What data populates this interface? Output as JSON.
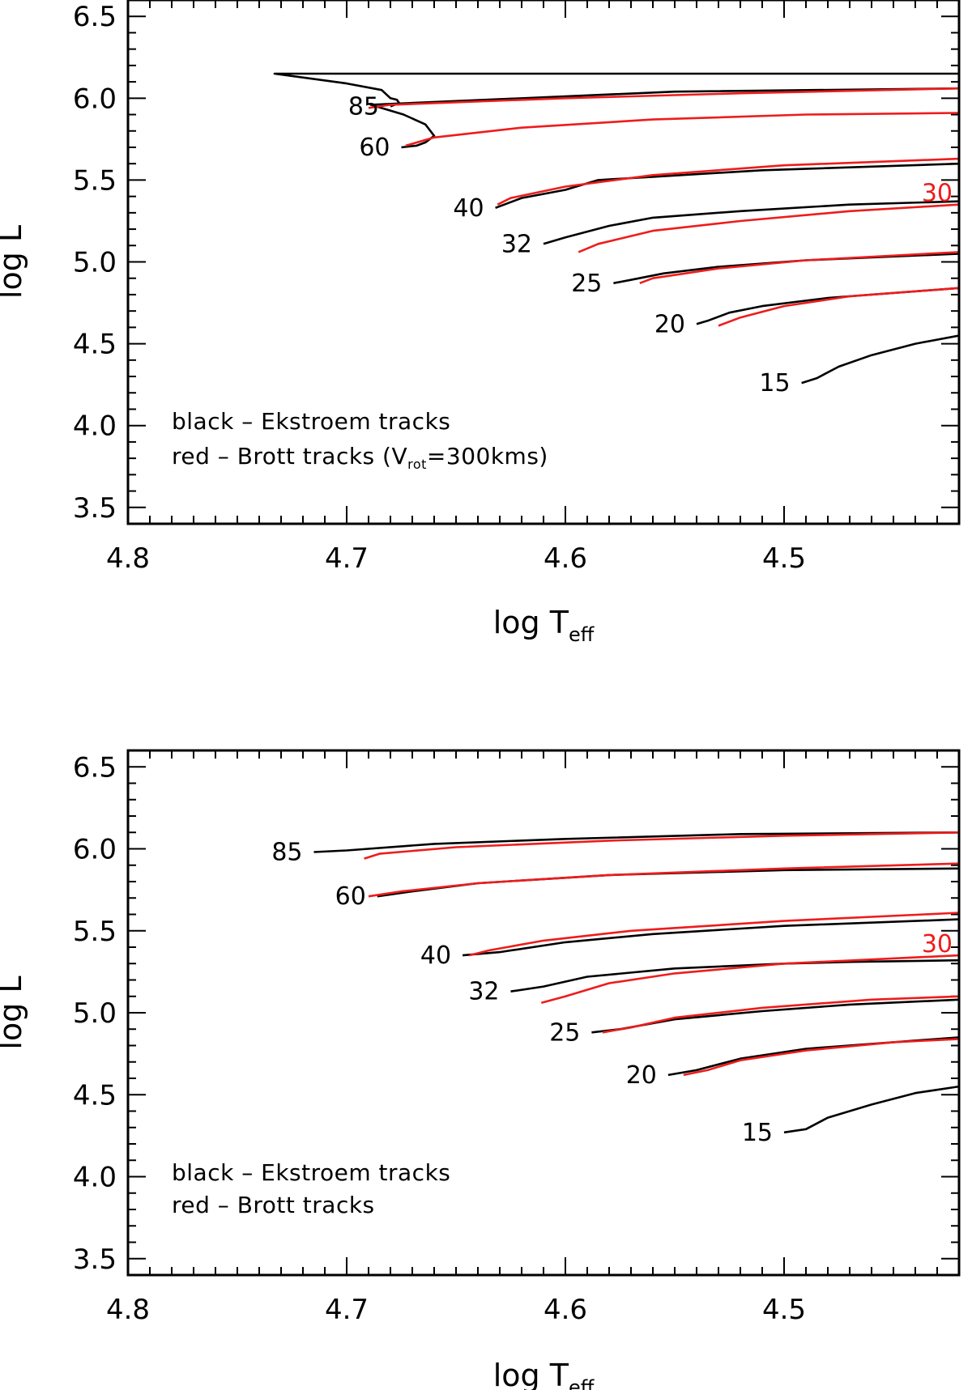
{
  "chart_data": [
    {
      "type": "line",
      "title": "",
      "xlabel": "log T",
      "xlabel_sub": "eff",
      "ylabel": "log L",
      "xlim": [
        4.8,
        4.42
      ],
      "ylim": [
        3.4,
        6.6
      ],
      "xticks": [
        4.8,
        4.7,
        4.6,
        4.5
      ],
      "xtick_labels": [
        "4.8",
        "4.7",
        "4.6",
        "4.5"
      ],
      "yticks": [
        3.5,
        4.0,
        4.5,
        5.0,
        5.5,
        6.0,
        6.5
      ],
      "ytick_labels": [
        "3.5",
        "4.0",
        "4.5",
        "5.0",
        "5.5",
        "6.0",
        "6.5"
      ],
      "colors": {
        "black": "#000000",
        "red": "#ee1c1c"
      },
      "legend": {
        "line1": "black – Ekstroem tracks",
        "line2_prefix": "red – Brott tracks (V",
        "line2_sub": "rot",
        "line2_suffix": "=300kms)",
        "placement": "bottom-left"
      },
      "series": [
        {
          "name": "Ekstroem 85",
          "color": "black",
          "label": "85",
          "points": [
            [
              4.68,
              5.95
            ],
            [
              4.676,
              5.97
            ],
            [
              4.677,
              5.99
            ],
            [
              4.68,
              6.0
            ],
            [
              4.684,
              6.05
            ],
            [
              4.7,
              6.09
            ],
            [
              4.733,
              6.15
            ],
            [
              4.68,
              6.15
            ],
            [
              4.6,
              6.15
            ],
            [
              4.52,
              6.15
            ],
            [
              4.42,
              6.15
            ]
          ]
        },
        {
          "name": "Ekstroem 60",
          "color": "black",
          "label": "60",
          "points": [
            [
              4.675,
              5.7
            ],
            [
              4.668,
              5.71
            ],
            [
              4.664,
              5.73
            ],
            [
              4.66,
              5.77
            ],
            [
              4.664,
              5.84
            ],
            [
              4.674,
              5.9
            ],
            [
              4.689,
              5.96
            ],
            [
              4.55,
              6.04
            ],
            [
              4.42,
              6.06
            ]
          ]
        },
        {
          "name": "Ekstroem 40",
          "color": "black",
          "label": "40",
          "points": [
            [
              4.632,
              5.33
            ],
            [
              4.62,
              5.39
            ],
            [
              4.6,
              5.44
            ],
            [
              4.585,
              5.5
            ],
            [
              4.56,
              5.52
            ],
            [
              4.51,
              5.56
            ],
            [
              4.42,
              5.6
            ]
          ]
        },
        {
          "name": "Ekstroem 32",
          "color": "black",
          "label": "32",
          "points": [
            [
              4.61,
              5.11
            ],
            [
              4.6,
              5.15
            ],
            [
              4.58,
              5.22
            ],
            [
              4.56,
              5.27
            ],
            [
              4.52,
              5.31
            ],
            [
              4.47,
              5.35
            ],
            [
              4.42,
              5.37
            ]
          ]
        },
        {
          "name": "Ekstroem 25",
          "color": "black",
          "label": "25",
          "points": [
            [
              4.578,
              4.87
            ],
            [
              4.57,
              4.89
            ],
            [
              4.555,
              4.93
            ],
            [
              4.53,
              4.97
            ],
            [
              4.49,
              5.01
            ],
            [
              4.42,
              5.05
            ]
          ]
        },
        {
          "name": "Ekstroem 20",
          "color": "black",
          "label": "20",
          "points": [
            [
              4.54,
              4.62
            ],
            [
              4.535,
              4.64
            ],
            [
              4.525,
              4.69
            ],
            [
              4.51,
              4.73
            ],
            [
              4.48,
              4.78
            ],
            [
              4.42,
              4.84
            ]
          ]
        },
        {
          "name": "Ekstroem 15",
          "color": "black",
          "label": "15",
          "points": [
            [
              4.492,
              4.26
            ],
            [
              4.485,
              4.29
            ],
            [
              4.475,
              4.36
            ],
            [
              4.46,
              4.43
            ],
            [
              4.44,
              4.5
            ],
            [
              4.42,
              4.55
            ]
          ]
        },
        {
          "name": "Brott 85",
          "color": "red",
          "label": "",
          "points": [
            [
              4.69,
              5.94
            ],
            [
              4.68,
              5.96
            ],
            [
              4.6,
              6.0
            ],
            [
              4.52,
              6.03
            ],
            [
              4.42,
              6.06
            ]
          ]
        },
        {
          "name": "Brott 60",
          "color": "red",
          "label": "",
          "points": [
            [
              4.673,
              5.71
            ],
            [
              4.66,
              5.76
            ],
            [
              4.62,
              5.82
            ],
            [
              4.56,
              5.87
            ],
            [
              4.49,
              5.9
            ],
            [
              4.42,
              5.91
            ]
          ]
        },
        {
          "name": "Brott 40",
          "color": "red",
          "label": "",
          "points": [
            [
              4.631,
              5.35
            ],
            [
              4.625,
              5.39
            ],
            [
              4.6,
              5.46
            ],
            [
              4.56,
              5.53
            ],
            [
              4.5,
              5.59
            ],
            [
              4.42,
              5.63
            ]
          ]
        },
        {
          "name": "Brott 30",
          "color": "red",
          "label": "30",
          "points": [
            [
              4.594,
              5.06
            ],
            [
              4.585,
              5.11
            ],
            [
              4.56,
              5.19
            ],
            [
              4.52,
              5.25
            ],
            [
              4.47,
              5.31
            ],
            [
              4.42,
              5.35
            ]
          ]
        },
        {
          "name": "Brott 25",
          "color": "red",
          "label": "",
          "points": [
            [
              4.566,
              4.87
            ],
            [
              4.56,
              4.9
            ],
            [
              4.53,
              4.96
            ],
            [
              4.49,
              5.01
            ],
            [
              4.42,
              5.06
            ]
          ]
        },
        {
          "name": "Brott 20",
          "color": "red",
          "label": "",
          "points": [
            [
              4.53,
              4.61
            ],
            [
              4.52,
              4.66
            ],
            [
              4.5,
              4.73
            ],
            [
              4.47,
              4.79
            ],
            [
              4.42,
              4.84
            ]
          ]
        }
      ]
    },
    {
      "type": "line",
      "title": "",
      "xlabel": "log T",
      "xlabel_sub": "eff",
      "ylabel": "log L",
      "xlim": [
        4.8,
        4.42
      ],
      "ylim": [
        3.4,
        6.6
      ],
      "xticks": [
        4.8,
        4.7,
        4.6,
        4.5
      ],
      "xtick_labels": [
        "4.8",
        "4.7",
        "4.6",
        "4.5"
      ],
      "yticks": [
        3.5,
        4.0,
        4.5,
        5.0,
        5.5,
        6.0,
        6.5
      ],
      "ytick_labels": [
        "3.5",
        "4.0",
        "4.5",
        "5.0",
        "5.5",
        "6.0",
        "6.5"
      ],
      "colors": {
        "black": "#000000",
        "red": "#ee1c1c"
      },
      "legend": {
        "line1": "black – Ekstroem tracks",
        "line2_prefix": "red – Brott tracks",
        "line2_sub": "",
        "line2_suffix": "",
        "placement": "bottom-left"
      },
      "series": [
        {
          "name": "Ekstroem 85",
          "color": "black",
          "label": "85",
          "points": [
            [
              4.715,
              5.98
            ],
            [
              4.7,
              5.99
            ],
            [
              4.66,
              6.03
            ],
            [
              4.6,
              6.06
            ],
            [
              4.52,
              6.09
            ],
            [
              4.42,
              6.1
            ]
          ]
        },
        {
          "name": "Ekstroem 60",
          "color": "black",
          "label": "60",
          "points": [
            [
              4.686,
              5.71
            ],
            [
              4.67,
              5.74
            ],
            [
              4.64,
              5.79
            ],
            [
              4.58,
              5.84
            ],
            [
              4.5,
              5.87
            ],
            [
              4.42,
              5.88
            ]
          ]
        },
        {
          "name": "Ekstroem 40",
          "color": "black",
          "label": "40",
          "points": [
            [
              4.647,
              5.35
            ],
            [
              4.63,
              5.37
            ],
            [
              4.6,
              5.43
            ],
            [
              4.56,
              5.48
            ],
            [
              4.5,
              5.53
            ],
            [
              4.42,
              5.57
            ]
          ]
        },
        {
          "name": "Ekstroem 32",
          "color": "black",
          "label": "32",
          "points": [
            [
              4.625,
              5.13
            ],
            [
              4.61,
              5.16
            ],
            [
              4.59,
              5.22
            ],
            [
              4.55,
              5.27
            ],
            [
              4.5,
              5.3
            ],
            [
              4.47,
              5.31
            ],
            [
              4.42,
              5.32
            ]
          ]
        },
        {
          "name": "Ekstroem 25",
          "color": "black",
          "label": "25",
          "points": [
            [
              4.588,
              4.88
            ],
            [
              4.575,
              4.9
            ],
            [
              4.55,
              4.96
            ],
            [
              4.51,
              5.01
            ],
            [
              4.47,
              5.05
            ],
            [
              4.42,
              5.08
            ]
          ]
        },
        {
          "name": "Ekstroem 20",
          "color": "black",
          "label": "20",
          "points": [
            [
              4.553,
              4.62
            ],
            [
              4.54,
              4.65
            ],
            [
              4.52,
              4.72
            ],
            [
              4.49,
              4.78
            ],
            [
              4.45,
              4.82
            ],
            [
              4.42,
              4.85
            ]
          ]
        },
        {
          "name": "Ekstroem 15",
          "color": "black",
          "label": "15",
          "points": [
            [
              4.5,
              4.27
            ],
            [
              4.49,
              4.29
            ],
            [
              4.48,
              4.36
            ],
            [
              4.46,
              4.44
            ],
            [
              4.44,
              4.51
            ],
            [
              4.42,
              4.55
            ]
          ]
        },
        {
          "name": "Brott 85",
          "color": "red",
          "label": "",
          "points": [
            [
              4.692,
              5.94
            ],
            [
              4.685,
              5.97
            ],
            [
              4.65,
              6.01
            ],
            [
              4.58,
              6.05
            ],
            [
              4.5,
              6.08
            ],
            [
              4.42,
              6.1
            ]
          ]
        },
        {
          "name": "Brott 60",
          "color": "red",
          "label": "",
          "points": [
            [
              4.69,
              5.71
            ],
            [
              4.675,
              5.74
            ],
            [
              4.64,
              5.79
            ],
            [
              4.58,
              5.84
            ],
            [
              4.5,
              5.88
            ],
            [
              4.42,
              5.91
            ]
          ]
        },
        {
          "name": "Brott 40",
          "color": "red",
          "label": "",
          "points": [
            [
              4.644,
              5.35
            ],
            [
              4.635,
              5.38
            ],
            [
              4.61,
              5.44
            ],
            [
              4.57,
              5.5
            ],
            [
              4.5,
              5.56
            ],
            [
              4.42,
              5.61
            ]
          ]
        },
        {
          "name": "Brott 30",
          "color": "red",
          "label": "30",
          "points": [
            [
              4.611,
              5.06
            ],
            [
              4.6,
              5.1
            ],
            [
              4.58,
              5.18
            ],
            [
              4.55,
              5.24
            ],
            [
              4.5,
              5.3
            ],
            [
              4.42,
              5.35
            ]
          ]
        },
        {
          "name": "Brott 25",
          "color": "red",
          "label": "",
          "points": [
            [
              4.583,
              4.88
            ],
            [
              4.57,
              4.91
            ],
            [
              4.55,
              4.97
            ],
            [
              4.51,
              5.03
            ],
            [
              4.46,
              5.08
            ],
            [
              4.42,
              5.1
            ]
          ]
        },
        {
          "name": "Brott 20",
          "color": "red",
          "label": "",
          "points": [
            [
              4.546,
              4.62
            ],
            [
              4.535,
              4.65
            ],
            [
              4.52,
              4.71
            ],
            [
              4.49,
              4.77
            ],
            [
              4.45,
              4.82
            ],
            [
              4.42,
              4.84
            ]
          ]
        }
      ]
    }
  ]
}
